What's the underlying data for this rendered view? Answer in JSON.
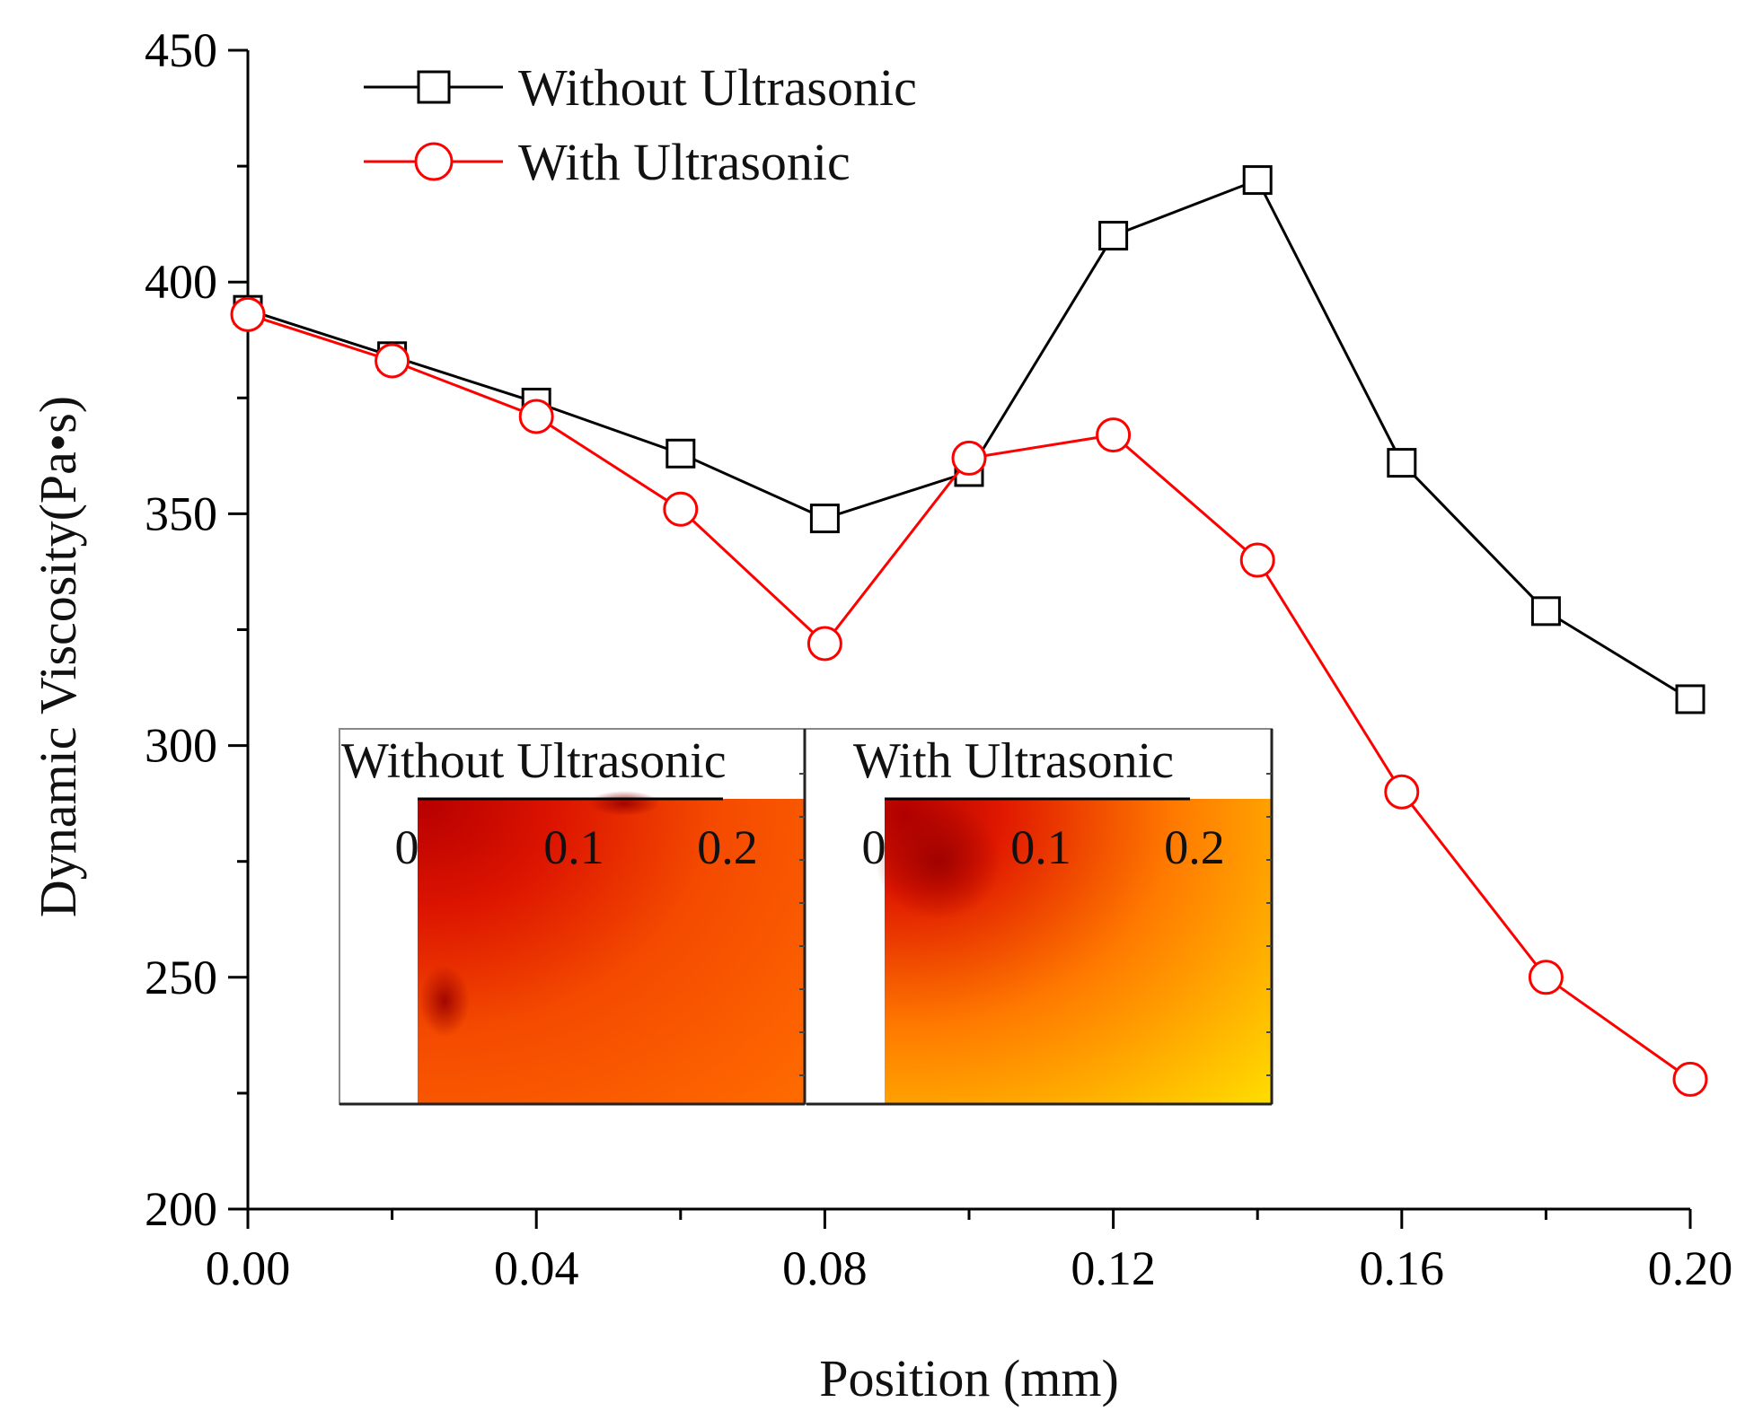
{
  "chart_data": {
    "type": "line",
    "xlabel": "Position (mm)",
    "ylabel": "Dynamic Viscosity(Pa•s)",
    "xlim": [
      0.0,
      0.2
    ],
    "ylim": [
      200,
      450
    ],
    "x_ticks": [
      "0.00",
      "0.04",
      "0.08",
      "0.12",
      "0.16",
      "0.20"
    ],
    "x_tick_values": [
      0.0,
      0.04,
      0.08,
      0.12,
      0.16,
      0.2
    ],
    "y_ticks": [
      "200",
      "250",
      "300",
      "350",
      "400",
      "450"
    ],
    "y_tick_values": [
      200,
      250,
      300,
      350,
      400,
      450
    ],
    "x": [
      0.0,
      0.02,
      0.04,
      0.06,
      0.08,
      0.1,
      0.12,
      0.14,
      0.16,
      0.18,
      0.2
    ],
    "series": [
      {
        "name": "Without Ultrasonic",
        "color": "#000000",
        "marker": "square",
        "values": [
          394,
          384,
          374,
          363,
          349,
          359,
          410,
          422,
          361,
          329,
          310
        ]
      },
      {
        "name": "With Ultrasonic",
        "color": "#ff0000",
        "marker": "circle",
        "values": [
          393,
          383,
          371,
          351,
          322,
          362,
          367,
          340,
          290,
          250,
          228
        ]
      }
    ],
    "legend_position": "top-left",
    "grid": false,
    "inset": {
      "panels": [
        {
          "title": "Without Ultrasonic",
          "ticks": [
            "0",
            "0.1",
            "0.2"
          ],
          "colormap": "red-orange"
        },
        {
          "title": "With Ultrasonic",
          "ticks": [
            "0",
            "0.1",
            "0.2"
          ],
          "colormap": "red-yellow"
        }
      ]
    }
  }
}
